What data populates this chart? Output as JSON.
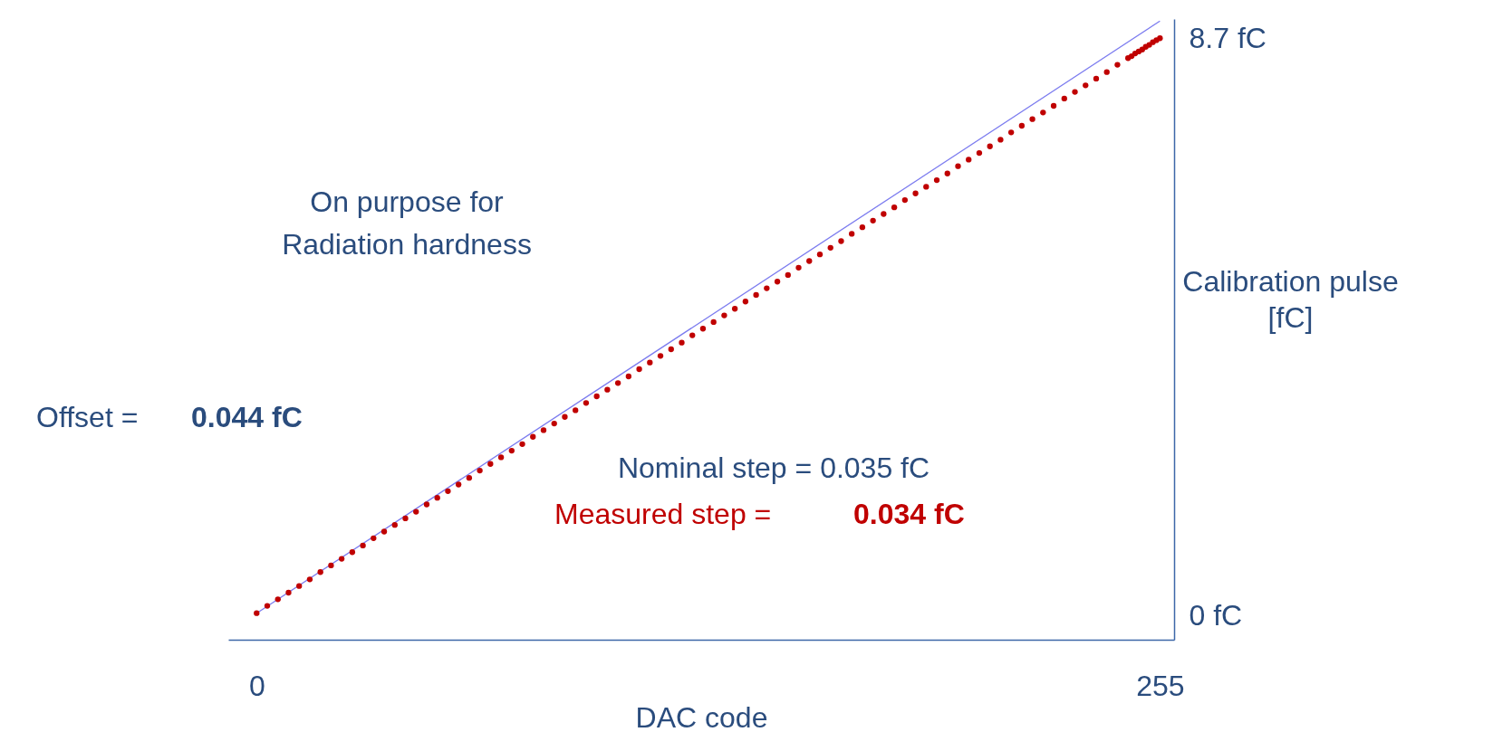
{
  "chart_data": {
    "type": "scatter",
    "xlabel": "DAC code",
    "ylabel": "Calibration pulse [fC]",
    "xlim": [
      -8,
      259
    ],
    "ylim": [
      -0.36,
      9.0
    ],
    "xticks": [
      0,
      255
    ],
    "yticks": [
      {
        "value": 0,
        "label": "0 fC"
      },
      {
        "value": 8.7,
        "label": "8.7 fC"
      }
    ],
    "grid": false,
    "marker": "circle",
    "annotations": [
      "On purpose for\nRadiation hardness",
      "Offset = ",
      "0.044 fC",
      "Nominal step = 0.035 fC",
      "Measured step = ",
      "0.034 fC"
    ],
    "series": [
      {
        "type": "line",
        "color": "#7b7bef",
        "x": [
          0,
          255
        ],
        "values": [
          0.04,
          8.97
        ],
        "marker": "none"
      },
      {
        "type": "scatter",
        "color": "#c00000",
        "x": [
          0,
          3,
          6,
          9,
          12,
          15,
          18,
          21,
          24,
          27,
          30,
          33,
          36,
          39,
          42,
          45,
          48,
          51,
          54,
          57,
          60,
          63,
          66,
          69,
          72,
          75,
          78,
          81,
          84,
          87,
          90,
          93,
          96,
          99,
          102,
          105,
          108,
          111,
          114,
          117,
          120,
          123,
          126,
          129,
          132,
          135,
          138,
          141,
          144,
          147,
          150,
          153,
          156,
          159,
          162,
          165,
          168,
          171,
          174,
          177,
          180,
          183,
          186,
          189,
          192,
          195,
          198,
          201,
          204,
          207,
          210,
          213,
          216,
          219,
          222,
          225,
          228,
          231,
          234,
          237,
          240,
          243,
          246,
          247,
          248,
          249,
          250,
          251,
          252,
          253,
          254,
          255
        ],
        "values": [
          0.04,
          0.15,
          0.25,
          0.35,
          0.45,
          0.55,
          0.66,
          0.76,
          0.86,
          0.96,
          1.06,
          1.17,
          1.27,
          1.37,
          1.47,
          1.57,
          1.68,
          1.78,
          1.88,
          1.98,
          2.08,
          2.19,
          2.29,
          2.39,
          2.49,
          2.59,
          2.7,
          2.8,
          2.9,
          3.0,
          3.1,
          3.21,
          3.31,
          3.41,
          3.51,
          3.61,
          3.72,
          3.82,
          3.92,
          4.02,
          4.12,
          4.23,
          4.33,
          4.43,
          4.53,
          4.63,
          4.74,
          4.84,
          4.94,
          5.04,
          5.14,
          5.25,
          5.35,
          5.45,
          5.55,
          5.65,
          5.76,
          5.86,
          5.96,
          6.06,
          6.16,
          6.27,
          6.37,
          6.47,
          6.57,
          6.67,
          6.78,
          6.88,
          6.98,
          7.08,
          7.18,
          7.29,
          7.39,
          7.49,
          7.59,
          7.69,
          7.8,
          7.9,
          8.0,
          8.1,
          8.2,
          8.31,
          8.41,
          8.44,
          8.48,
          8.51,
          8.54,
          8.58,
          8.61,
          8.65,
          8.68,
          8.71
        ]
      }
    ]
  }
}
